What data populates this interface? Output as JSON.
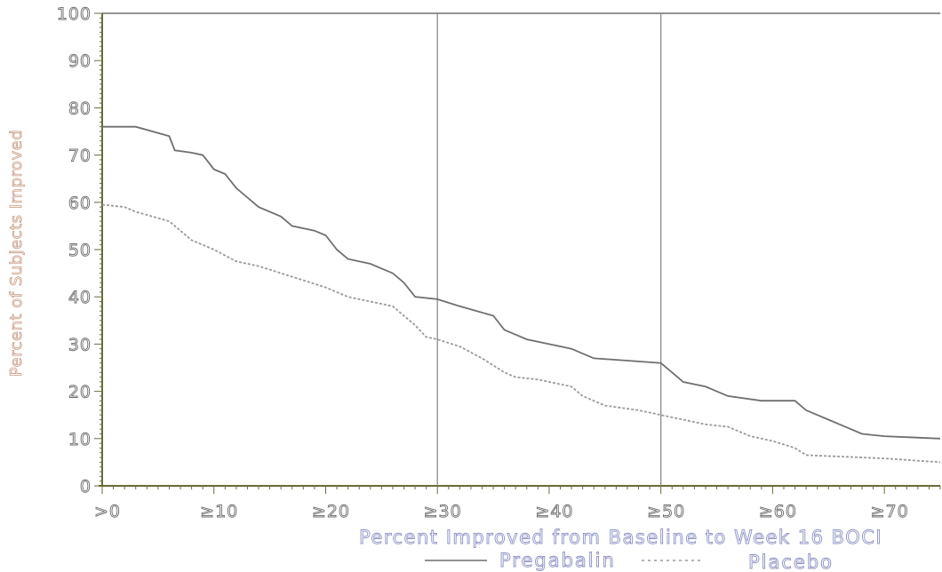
{
  "chart_data": {
    "type": "line",
    "title": "",
    "xlabel": "Percent Improved from Baseline to Week 16 BOCI",
    "ylabel": "Percent of Subjects Improved",
    "xlim": [
      0,
      75
    ],
    "ylim": [
      0,
      100
    ],
    "y_ticks": [
      0,
      10,
      20,
      30,
      40,
      50,
      60,
      70,
      80,
      90,
      100
    ],
    "x_ticks": [
      {
        "value": 0,
        "label": ">0"
      },
      {
        "value": 10,
        "label": "≥10"
      },
      {
        "value": 20,
        "label": "≥20"
      },
      {
        "value": 30,
        "label": "≥30"
      },
      {
        "value": 40,
        "label": "≥40"
      },
      {
        "value": 50,
        "label": "≥50"
      },
      {
        "value": 60,
        "label": "≥60"
      },
      {
        "value": 70,
        "label": "≥70"
      }
    ],
    "reference_lines_x": [
      30,
      50
    ],
    "legend_placement": "bottom",
    "series": [
      {
        "name": "Pregabalin",
        "style": "solid",
        "color": "#6f6f6f",
        "points": [
          [
            0,
            76
          ],
          [
            3,
            76
          ],
          [
            6,
            74
          ],
          [
            6.5,
            71
          ],
          [
            8,
            70.5
          ],
          [
            9,
            70
          ],
          [
            10,
            67
          ],
          [
            11,
            66
          ],
          [
            12,
            63
          ],
          [
            13,
            61
          ],
          [
            14,
            59
          ],
          [
            16,
            57
          ],
          [
            17,
            55
          ],
          [
            19,
            54
          ],
          [
            20,
            53
          ],
          [
            21,
            50
          ],
          [
            22,
            48
          ],
          [
            24,
            47
          ],
          [
            25,
            46
          ],
          [
            26,
            45
          ],
          [
            27,
            43
          ],
          [
            28,
            40
          ],
          [
            30,
            39.5
          ],
          [
            32,
            38
          ],
          [
            35,
            36
          ],
          [
            36,
            33
          ],
          [
            38,
            31
          ],
          [
            40,
            30
          ],
          [
            42,
            29
          ],
          [
            44,
            27
          ],
          [
            47,
            26.5
          ],
          [
            50,
            26
          ],
          [
            51,
            24
          ],
          [
            52,
            22
          ],
          [
            54,
            21
          ],
          [
            56,
            19
          ],
          [
            59,
            18
          ],
          [
            62,
            18
          ],
          [
            63,
            16
          ],
          [
            65,
            14
          ],
          [
            66,
            13
          ],
          [
            68,
            11
          ],
          [
            70,
            10.5
          ],
          [
            72,
            10.3
          ],
          [
            75,
            10
          ]
        ]
      },
      {
        "name": "Placebo",
        "style": "dashed",
        "color": "#9a9a9a",
        "points": [
          [
            0,
            59.5
          ],
          [
            2,
            59
          ],
          [
            3,
            58
          ],
          [
            6,
            56
          ],
          [
            7,
            54
          ],
          [
            8,
            52
          ],
          [
            10,
            50
          ],
          [
            12,
            47.5
          ],
          [
            14,
            46.5
          ],
          [
            16,
            45
          ],
          [
            18,
            43.5
          ],
          [
            20,
            42
          ],
          [
            22,
            40
          ],
          [
            24,
            39
          ],
          [
            26,
            38
          ],
          [
            27,
            36
          ],
          [
            28,
            34
          ],
          [
            29,
            31.5
          ],
          [
            30,
            31
          ],
          [
            32,
            29.5
          ],
          [
            34,
            27
          ],
          [
            36,
            24
          ],
          [
            37,
            23
          ],
          [
            39,
            22.5
          ],
          [
            41,
            21.5
          ],
          [
            42,
            21
          ],
          [
            43,
            19
          ],
          [
            45,
            17
          ],
          [
            48,
            16
          ],
          [
            50,
            15
          ],
          [
            52,
            14
          ],
          [
            54,
            13
          ],
          [
            56,
            12.5
          ],
          [
            58,
            10.5
          ],
          [
            60,
            9.5
          ],
          [
            62,
            8
          ],
          [
            63,
            6.5
          ],
          [
            65,
            6.3
          ],
          [
            70,
            5.8
          ],
          [
            75,
            5
          ]
        ]
      }
    ]
  }
}
